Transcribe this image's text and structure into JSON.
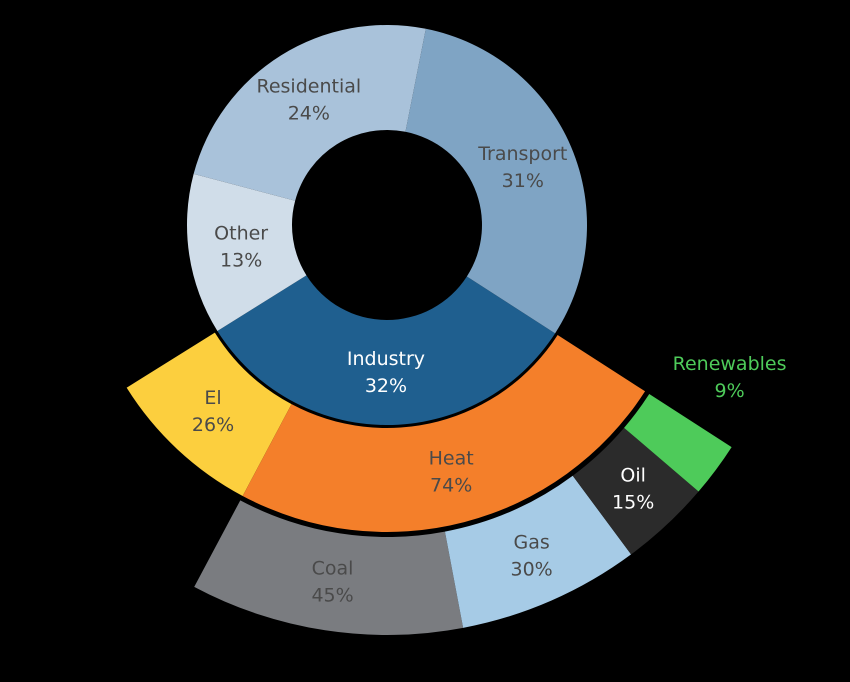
{
  "chart_data": {
    "type": "sunburst",
    "rings": [
      {
        "categories": [
          "Industry",
          "Transport",
          "Residential",
          "Other"
        ],
        "values": [
          32,
          31,
          24,
          13
        ],
        "value_labels": [
          "32%",
          "31%",
          "24%",
          "13%"
        ],
        "colors": [
          "#1f5f8f",
          "#7fa4c4",
          "#a9c2da",
          "#d0dde9"
        ]
      },
      {
        "categories": [
          "El",
          "Heat"
        ],
        "values": [
          26,
          74
        ],
        "value_labels": [
          "26%",
          "74%"
        ],
        "colors": [
          "#fccf3e",
          "#f47f2a"
        ]
      },
      {
        "categories": [
          "Coal",
          "Gas",
          "Oil",
          "Renewables"
        ],
        "values": [
          45,
          30,
          15,
          9
        ],
        "value_labels": [
          "45%",
          "30%",
          "15%",
          "9%"
        ],
        "colors": [
          "#7a7c80",
          "#a6cbe6",
          "#2b2b2b",
          "#4ecb5a"
        ]
      }
    ]
  }
}
